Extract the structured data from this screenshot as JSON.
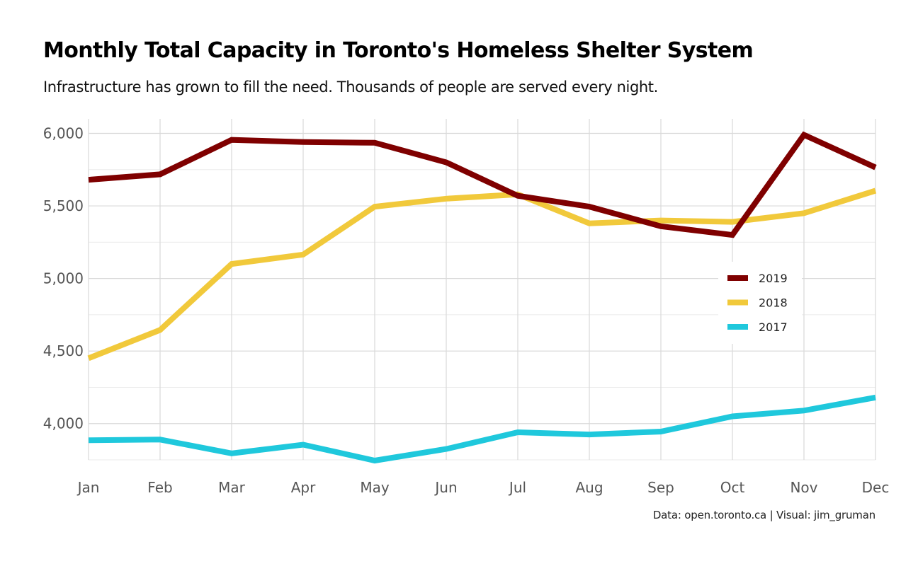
{
  "chart_data": {
    "type": "line",
    "title": "Monthly Total Capacity in Toronto's Homeless Shelter System",
    "subtitle": "Infrastructure has grown to fill the need. Thousands of people are served every night.",
    "caption": "Data: open.toronto.ca | Visual: jim_gruman",
    "xlabel": "",
    "ylabel": "",
    "categories": [
      "Jan",
      "Feb",
      "Mar",
      "Apr",
      "May",
      "Jun",
      "Jul",
      "Aug",
      "Sep",
      "Oct",
      "Nov",
      "Dec"
    ],
    "yticks": [
      4000,
      4500,
      5000,
      5500,
      6000
    ],
    "ytick_labels": [
      "4,000",
      "4,500",
      "5,000",
      "5,500",
      "6,000"
    ],
    "ylim": [
      3750,
      6100
    ],
    "grid": true,
    "legend_position": "right",
    "series": [
      {
        "name": "2019",
        "color": "#7f0000",
        "values": [
          5680,
          5718,
          5955,
          5940,
          5935,
          5800,
          5570,
          5495,
          5360,
          5300,
          5990,
          5765
        ]
      },
      {
        "name": "2018",
        "color": "#f1c93b",
        "values": [
          4450,
          4645,
          5100,
          5165,
          5495,
          5550,
          5580,
          5380,
          5400,
          5390,
          5450,
          5605
        ]
      },
      {
        "name": "2017",
        "color": "#1fc8dc",
        "values": [
          3885,
          3890,
          3795,
          3855,
          3745,
          3825,
          3940,
          3925,
          3945,
          4050,
          4090,
          4180
        ]
      }
    ]
  }
}
